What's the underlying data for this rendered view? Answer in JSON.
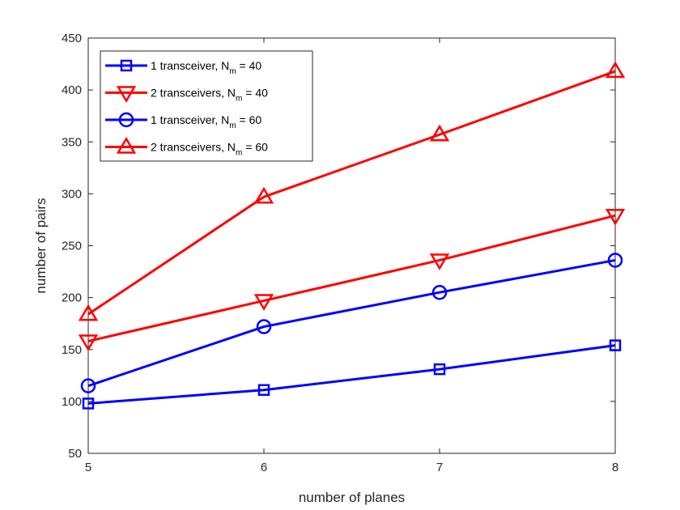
{
  "chart_data": {
    "type": "line",
    "xlabel": "number of planes",
    "ylabel": "number of pairs",
    "x": [
      5,
      6,
      7,
      8
    ],
    "xlim": [
      5,
      8
    ],
    "ylim": [
      50,
      450
    ],
    "xticks": [
      "5",
      "6",
      "7",
      "8"
    ],
    "yticks": [
      "50",
      "100",
      "150",
      "200",
      "250",
      "300",
      "350",
      "400",
      "450"
    ],
    "grid": false,
    "legend_position": "top-left",
    "series": [
      {
        "name": "1 transceiver, N_m = 40",
        "legend": {
          "pre": "1 transceiver, N",
          "sub": "m",
          "post": " = 40"
        },
        "color": "#0000ff",
        "marker": "square",
        "values": [
          98,
          111,
          131,
          154
        ]
      },
      {
        "name": "2 transceivers, N_m = 40",
        "legend": {
          "pre": "2 transceivers, N",
          "sub": "m",
          "post": " = 40"
        },
        "color": "#ff0000",
        "marker": "triangle-down",
        "values": [
          158,
          197,
          236,
          279
        ]
      },
      {
        "name": "1 transceiver, N_m = 60",
        "legend": {
          "pre": "1 transceiver, N",
          "sub": "m",
          "post": " = 60"
        },
        "color": "#0000ff",
        "marker": "circle",
        "values": [
          115,
          172,
          205,
          236
        ]
      },
      {
        "name": "2 transceivers, N_m = 60",
        "legend": {
          "pre": "2 transceivers, N",
          "sub": "m",
          "post": " = 60"
        },
        "color": "#ff0000",
        "marker": "triangle-up",
        "values": [
          184,
          297,
          357,
          418
        ]
      }
    ]
  }
}
